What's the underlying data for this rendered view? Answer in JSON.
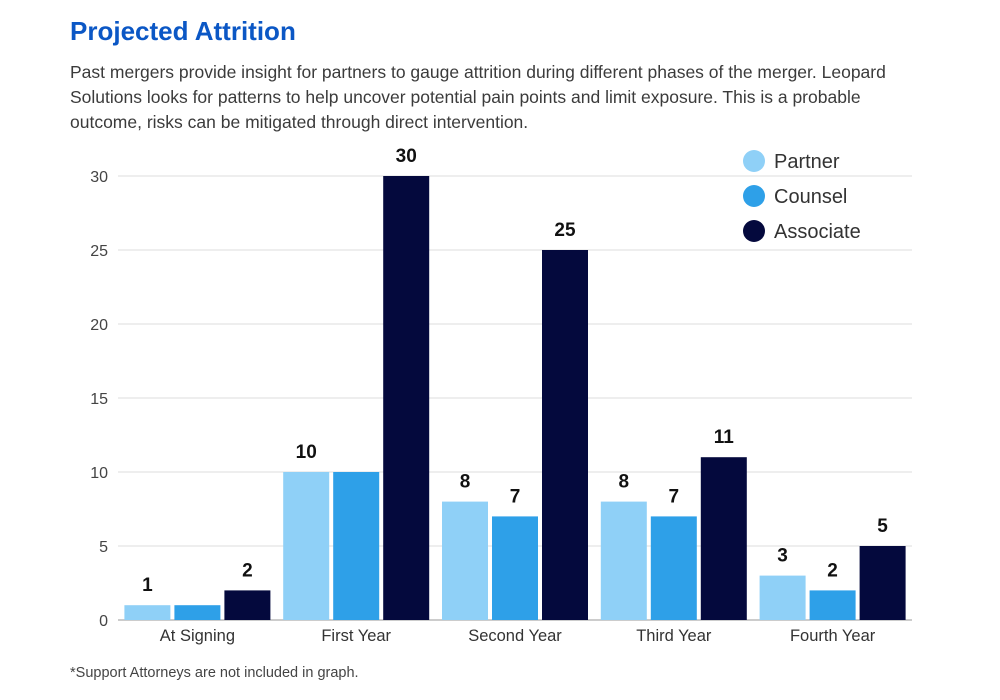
{
  "title": "Projected Attrition",
  "subtitle": "Past mergers provide insight for partners to gauge attrition during different phases of the merger. Leopard Solutions looks for patterns to help uncover potential pain points and limit exposure. This is a probable outcome, risks can be mitigated through direct intervention.",
  "footnote": "*Support Attorneys are not included in graph.",
  "chart_data": {
    "type": "bar",
    "title": "",
    "xlabel": "",
    "ylabel": "",
    "categories": [
      "At Signing",
      "First Year",
      "Second Year",
      "Third Year",
      "Fourth Year"
    ],
    "series": [
      {
        "name": "Partner",
        "color": "#8fd0f7",
        "values": [
          1,
          10,
          8,
          8,
          3
        ],
        "labels": [
          "1",
          "10",
          "8",
          "8",
          "3"
        ]
      },
      {
        "name": "Counsel",
        "color": "#2ea0e8",
        "values": [
          1,
          10,
          7,
          7,
          2
        ],
        "labels": [
          "",
          "",
          "7",
          "7",
          "2"
        ]
      },
      {
        "name": "Associate",
        "color": "#04093d",
        "values": [
          2,
          30,
          25,
          11,
          5
        ],
        "labels": [
          "2",
          "30",
          "25",
          "11",
          "5"
        ]
      }
    ],
    "ylim": [
      0,
      30
    ],
    "yticks": [
      0,
      5,
      10,
      15,
      20,
      25,
      30
    ],
    "grid": true,
    "legend": "top-right"
  }
}
